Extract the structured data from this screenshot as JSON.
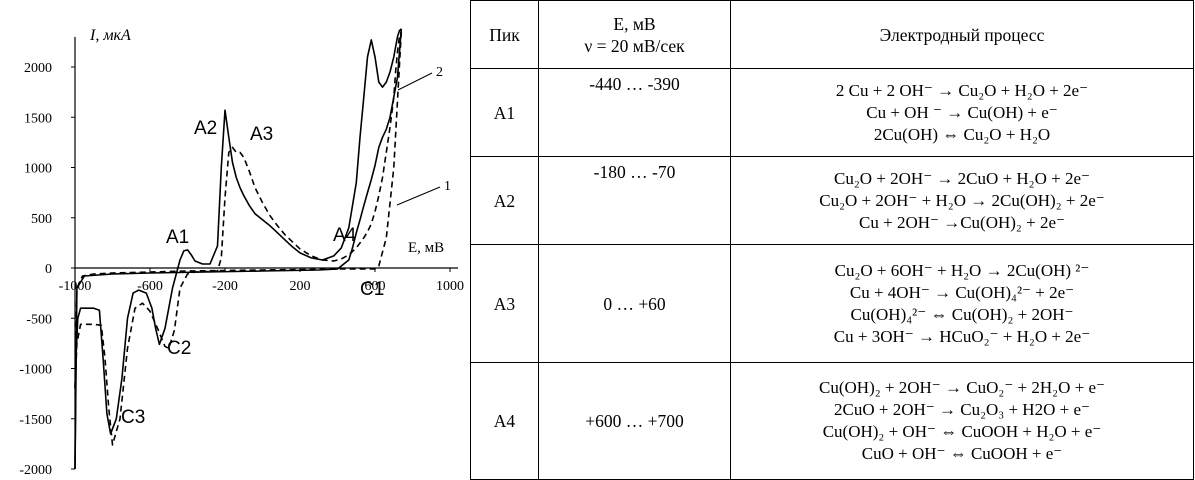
{
  "chart_data": {
    "type": "line",
    "ylabel": "I, мкА",
    "xlabel": "E, мВ",
    "xlim": [
      -1000,
      1000
    ],
    "ylim": [
      -2000,
      2300
    ],
    "xticks": [
      -1000,
      -600,
      -200,
      200,
      600,
      1000
    ],
    "yticks": [
      -2000,
      -1500,
      -1000,
      -500,
      0,
      500,
      1000,
      1500,
      2000
    ],
    "series": [
      {
        "name": "1",
        "style": "dashed",
        "x": [
          -1000,
          -990,
          -970,
          -960,
          -900,
          -860,
          -840,
          -820,
          -800,
          -760,
          -720,
          -680,
          -640,
          -600,
          -560,
          -520,
          -500,
          -470,
          -440,
          -400,
          -360,
          -320,
          -280,
          -240,
          -220,
          -200,
          -180,
          -160,
          -140,
          -120,
          -100,
          -70,
          -40,
          0,
          40,
          80,
          120,
          160,
          200,
          260,
          320,
          380,
          420,
          460,
          500,
          540,
          560,
          580,
          600,
          620,
          640,
          660,
          680,
          700,
          710,
          720,
          730,
          740
        ],
        "y": [
          -1200,
          -750,
          -560,
          -560,
          -560,
          -570,
          -900,
          -1400,
          -1760,
          -1500,
          -800,
          -400,
          -350,
          -430,
          -600,
          -780,
          -800,
          -620,
          -200,
          -60,
          -40,
          -35,
          -35,
          -30,
          100,
          700,
          1150,
          1200,
          1150,
          1150,
          1100,
          960,
          800,
          650,
          520,
          420,
          330,
          260,
          190,
          120,
          80,
          70,
          90,
          130,
          200,
          300,
          360,
          440,
          560,
          720,
          900,
          1150,
          1400,
          1700,
          1950,
          2150,
          2300,
          2350
        ],
        "return_x": [
          740,
          700,
          660,
          620,
          600,
          400,
          0,
          -400,
          -600,
          -800,
          -900,
          -960,
          -990,
          -1000
        ],
        "return_y": [
          2350,
          1000,
          300,
          20,
          -10,
          -10,
          -20,
          -30,
          -40,
          -50,
          -60,
          -80,
          -200,
          -1200
        ]
      },
      {
        "name": "2",
        "style": "solid",
        "x": [
          -1000,
          -995,
          -985,
          -970,
          -950,
          -900,
          -870,
          -850,
          -830,
          -810,
          -780,
          -750,
          -720,
          -690,
          -660,
          -620,
          -590,
          -570,
          -550,
          -520,
          -480,
          -440,
          -420,
          -400,
          -380,
          -360,
          -320,
          -280,
          -240,
          -220,
          -200,
          -180,
          -160,
          -140,
          -120,
          -100,
          -70,
          -40,
          0,
          40,
          80,
          120,
          160,
          200,
          260,
          320,
          380,
          420,
          460,
          500,
          520,
          540,
          560,
          580,
          600,
          620,
          640,
          660,
          680,
          700,
          710,
          720,
          730,
          740
        ],
        "y": [
          -2000,
          -900,
          -500,
          -400,
          -400,
          -400,
          -420,
          -900,
          -1450,
          -1650,
          -1500,
          -1100,
          -500,
          -250,
          -220,
          -250,
          -400,
          -600,
          -760,
          -600,
          -200,
          80,
          170,
          180,
          130,
          70,
          40,
          40,
          220,
          1000,
          1570,
          1300,
          1050,
          900,
          800,
          720,
          620,
          540,
          480,
          420,
          350,
          280,
          210,
          150,
          100,
          80,
          120,
          200,
          400,
          850,
          1300,
          1700,
          2100,
          2270,
          2100,
          1850,
          1800,
          1850,
          1950,
          2100,
          2200,
          2300,
          2360,
          2380
        ],
        "return_x": [
          740,
          720,
          700,
          680,
          660,
          640,
          620,
          600,
          580,
          560,
          540,
          520,
          500,
          480,
          460,
          400,
          300,
          0,
          -300,
          -600,
          -800,
          -950,
          -990,
          -1000
        ],
        "return_y": [
          2380,
          1900,
          1700,
          1500,
          1380,
          1300,
          1200,
          1020,
          880,
          750,
          620,
          480,
          350,
          200,
          80,
          -10,
          -20,
          -30,
          -40,
          -50,
          -60,
          -80,
          -200,
          -2000
        ]
      }
    ],
    "annotations": [
      "A1",
      "A2",
      "A3",
      "A4",
      "C1",
      "C2",
      "C3"
    ]
  },
  "table": {
    "headers": [
      "Пик",
      "E, мВ",
      "ν = 20 мВ/сек",
      "Электродный процесс"
    ],
    "rows": [
      {
        "peak": "A1",
        "range": "-440 … -390",
        "processes": [
          "2 Cu + 2 OH⁻ → Cu₂O + H₂O + 2e⁻",
          "Cu + OH ⁻ → Cu(OH) + e⁻",
          "2Cu(OH) ⇔ Cu₂O + H₂O"
        ]
      },
      {
        "peak": "A2",
        "range": "-180 … -70",
        "processes": [
          "Cu₂O + 2OH⁻ → 2CuO + H₂O + 2e⁻",
          "Cu₂O + 2OH⁻ + H₂O → 2Cu(OH)₂ + 2e⁻",
          "Cu + 2OH⁻ →Cu(OH)₂ + 2e⁻"
        ]
      },
      {
        "peak": "A3",
        "range": "0 … +60",
        "processes": [
          "Cu₂O + 6OH⁻ + H₂O → 2Cu(OH) ²⁻",
          "Cu + 4OH⁻ → Cu(OH)₄²⁻  + 2e⁻",
          "Cu(OH)₄²⁻ ⇔ Cu(OH)₂ + 2OH⁻",
          "Cu + 3OH⁻ → HCuO₂⁻ + H₂O + 2e⁻"
        ]
      },
      {
        "peak": "A4",
        "range": "+600 … +700",
        "processes": [
          "Cu(OH)₂ + 2OH⁻ → CuO₂⁻ + 2H₂O + e⁻",
          "2CuO + 2OH⁻ → Cu₂O₃ + H2O + e⁻",
          "Cu(OH)₂ + OH⁻ ⇔ CuOOH + H₂O + e⁻",
          "CuO + OH⁻  ⇔ CuOOH + e⁻"
        ]
      }
    ]
  }
}
